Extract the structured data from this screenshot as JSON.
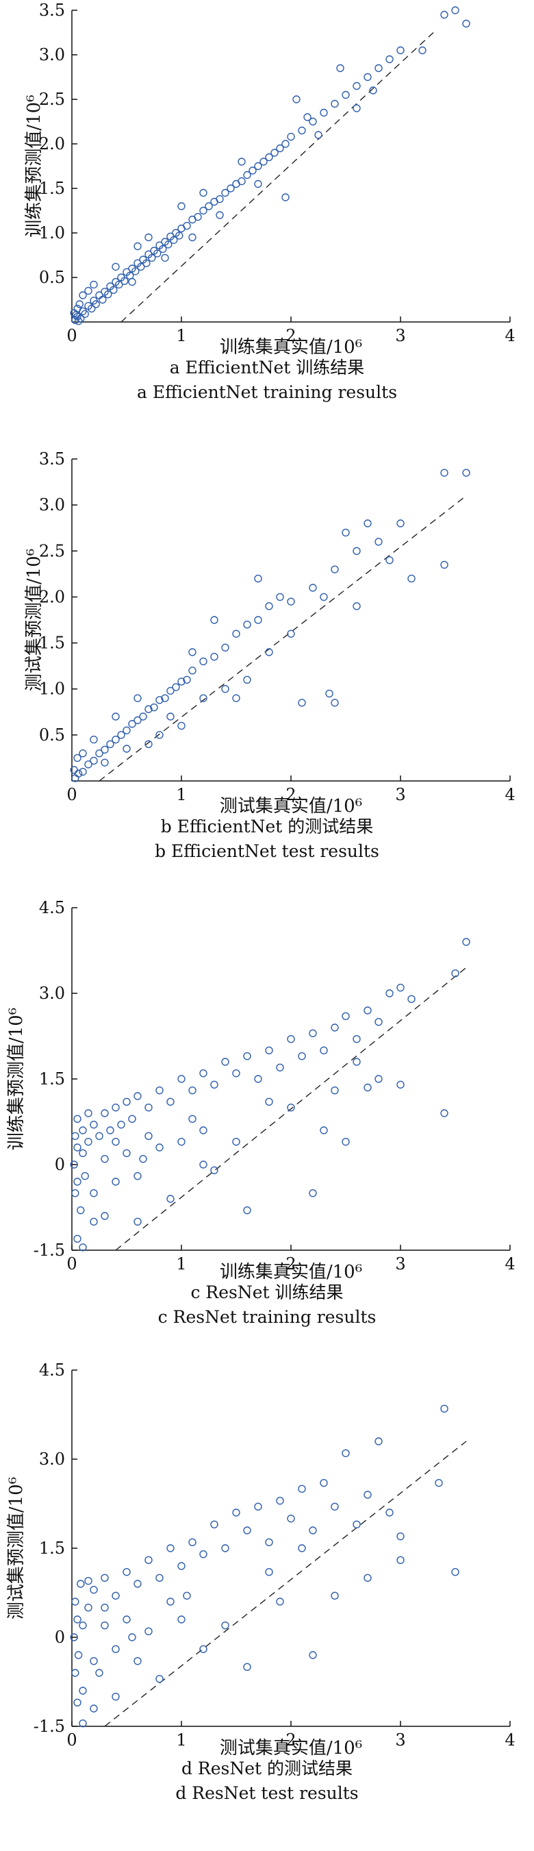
{
  "colors": {
    "marker": "#2f5fae",
    "axis": "#111111",
    "diagonal": "#222222"
  },
  "chart_data": [
    {
      "id": "a",
      "type": "scatter",
      "xlabel": "训练集真实值/10⁶",
      "ylabel": "训练集预测值/10⁶",
      "xlim": [
        0,
        4
      ],
      "ylim": [
        0,
        3.5
      ],
      "xticks": [
        "0",
        "1",
        "2",
        "3",
        "4"
      ],
      "yticks": [
        "0.5",
        "1.0",
        "1.5",
        "2.0",
        "2.5",
        "3.0",
        "3.5"
      ],
      "ytick_values": [
        0.5,
        1.0,
        1.5,
        2.0,
        2.5,
        3.0,
        3.5
      ],
      "diagonal": [
        [
          0.45,
          0
        ],
        [
          3.3,
          3.25
        ]
      ],
      "caption_zh": "a EfficientNet 训练结果",
      "caption_en": "a EfficientNet training results",
      "points": [
        [
          0.03,
          0.02
        ],
        [
          0.05,
          0.06
        ],
        [
          0.08,
          0.04
        ],
        [
          0.1,
          0.12
        ],
        [
          0.12,
          0.09
        ],
        [
          0.15,
          0.18
        ],
        [
          0.18,
          0.15
        ],
        [
          0.2,
          0.24
        ],
        [
          0.22,
          0.2
        ],
        [
          0.25,
          0.3
        ],
        [
          0.28,
          0.25
        ],
        [
          0.3,
          0.34
        ],
        [
          0.33,
          0.31
        ],
        [
          0.35,
          0.4
        ],
        [
          0.38,
          0.36
        ],
        [
          0.4,
          0.45
        ],
        [
          0.43,
          0.42
        ],
        [
          0.45,
          0.5
        ],
        [
          0.48,
          0.46
        ],
        [
          0.5,
          0.56
        ],
        [
          0.53,
          0.52
        ],
        [
          0.55,
          0.6
        ],
        [
          0.58,
          0.57
        ],
        [
          0.6,
          0.66
        ],
        [
          0.63,
          0.62
        ],
        [
          0.65,
          0.7
        ],
        [
          0.68,
          0.66
        ],
        [
          0.7,
          0.76
        ],
        [
          0.73,
          0.72
        ],
        [
          0.75,
          0.8
        ],
        [
          0.78,
          0.77
        ],
        [
          0.8,
          0.86
        ],
        [
          0.83,
          0.82
        ],
        [
          0.85,
          0.9
        ],
        [
          0.88,
          0.87
        ],
        [
          0.9,
          0.96
        ],
        [
          0.93,
          0.92
        ],
        [
          0.95,
          1.0
        ],
        [
          0.98,
          0.97
        ],
        [
          1.0,
          1.05
        ],
        [
          1.05,
          1.08
        ],
        [
          1.1,
          1.15
        ],
        [
          1.15,
          1.18
        ],
        [
          1.2,
          1.25
        ],
        [
          1.25,
          1.3
        ],
        [
          1.3,
          1.35
        ],
        [
          1.35,
          1.38
        ],
        [
          1.4,
          1.45
        ],
        [
          1.45,
          1.5
        ],
        [
          1.5,
          1.55
        ],
        [
          1.55,
          1.58
        ],
        [
          1.6,
          1.65
        ],
        [
          1.65,
          1.7
        ],
        [
          1.7,
          1.75
        ],
        [
          1.75,
          1.8
        ],
        [
          1.8,
          1.85
        ],
        [
          1.85,
          1.9
        ],
        [
          1.9,
          1.95
        ],
        [
          1.95,
          2.0
        ],
        [
          2.0,
          2.08
        ],
        [
          2.1,
          2.15
        ],
        [
          2.2,
          2.25
        ],
        [
          2.3,
          2.35
        ],
        [
          2.4,
          2.45
        ],
        [
          2.5,
          2.55
        ],
        [
          2.6,
          2.65
        ],
        [
          2.7,
          2.75
        ],
        [
          2.8,
          2.85
        ],
        [
          2.9,
          2.95
        ],
        [
          3.0,
          3.05
        ],
        [
          3.4,
          3.45
        ],
        [
          3.5,
          3.5
        ],
        [
          3.6,
          3.35
        ],
        [
          2.05,
          2.5
        ],
        [
          2.45,
          2.85
        ],
        [
          1.55,
          1.8
        ],
        [
          0.7,
          0.95
        ],
        [
          0.2,
          0.42
        ],
        [
          0.4,
          0.62
        ],
        [
          1.2,
          1.45
        ],
        [
          1.95,
          1.4
        ],
        [
          2.15,
          2.3
        ],
        [
          2.6,
          2.4
        ],
        [
          0.1,
          0.3
        ],
        [
          0.6,
          0.85
        ],
        [
          1.0,
          1.3
        ],
        [
          0.15,
          0.35
        ],
        [
          0.55,
          0.45
        ],
        [
          0.85,
          0.72
        ],
        [
          1.1,
          0.95
        ],
        [
          1.35,
          1.2
        ],
        [
          1.7,
          1.55
        ],
        [
          2.25,
          2.1
        ],
        [
          2.75,
          2.6
        ],
        [
          3.2,
          3.05
        ],
        [
          0.02,
          0.1
        ],
        [
          0.05,
          0.15
        ],
        [
          0.07,
          0.2
        ],
        [
          0.04,
          0.08
        ],
        [
          0.06,
          0.01
        ]
      ]
    },
    {
      "id": "b",
      "type": "scatter",
      "xlabel": "测试集真实值/10⁶",
      "ylabel": "测试集预测值/10⁶",
      "xlim": [
        0,
        4
      ],
      "ylim": [
        0,
        3.5
      ],
      "xticks": [
        "0",
        "1",
        "2",
        "3",
        "4"
      ],
      "yticks": [
        "0.5",
        "1.0",
        "1.5",
        "2.0",
        "2.5",
        "3.0",
        "3.5"
      ],
      "ytick_values": [
        0.5,
        1.0,
        1.5,
        2.0,
        2.5,
        3.0,
        3.5
      ],
      "diagonal": [
        [
          0.25,
          0
        ],
        [
          3.6,
          3.1
        ]
      ],
      "caption_zh": "b EfficientNet 的测试结果",
      "caption_en": "b EfficientNet test results",
      "points": [
        [
          0.03,
          0.03
        ],
        [
          0.06,
          0.08
        ],
        [
          0.1,
          0.1
        ],
        [
          0.15,
          0.18
        ],
        [
          0.2,
          0.22
        ],
        [
          0.25,
          0.3
        ],
        [
          0.3,
          0.34
        ],
        [
          0.35,
          0.4
        ],
        [
          0.4,
          0.45
        ],
        [
          0.45,
          0.5
        ],
        [
          0.5,
          0.55
        ],
        [
          0.55,
          0.62
        ],
        [
          0.6,
          0.66
        ],
        [
          0.65,
          0.7
        ],
        [
          0.7,
          0.78
        ],
        [
          0.75,
          0.8
        ],
        [
          0.8,
          0.88
        ],
        [
          0.85,
          0.9
        ],
        [
          0.9,
          0.98
        ],
        [
          0.95,
          1.02
        ],
        [
          1.0,
          1.08
        ],
        [
          1.05,
          1.1
        ],
        [
          1.1,
          1.2
        ],
        [
          1.2,
          1.3
        ],
        [
          1.3,
          1.35
        ],
        [
          1.4,
          1.45
        ],
        [
          1.5,
          1.6
        ],
        [
          1.6,
          1.7
        ],
        [
          1.7,
          1.75
        ],
        [
          1.8,
          1.9
        ],
        [
          1.9,
          2.0
        ],
        [
          2.0,
          1.95
        ],
        [
          2.2,
          2.1
        ],
        [
          2.4,
          2.3
        ],
        [
          2.6,
          2.5
        ],
        [
          2.8,
          2.6
        ],
        [
          3.0,
          2.8
        ],
        [
          3.4,
          3.35
        ],
        [
          3.6,
          3.35
        ],
        [
          3.4,
          2.35
        ],
        [
          2.1,
          0.85
        ],
        [
          2.4,
          0.85
        ],
        [
          2.35,
          0.95
        ],
        [
          1.5,
          0.9
        ],
        [
          1.6,
          1.1
        ],
        [
          1.0,
          0.6
        ],
        [
          0.8,
          0.5
        ],
        [
          0.5,
          0.35
        ],
        [
          0.3,
          0.2
        ],
        [
          1.3,
          1.75
        ],
        [
          1.7,
          2.2
        ],
        [
          2.5,
          2.7
        ],
        [
          2.7,
          2.8
        ],
        [
          0.6,
          0.9
        ],
        [
          0.4,
          0.7
        ],
        [
          0.2,
          0.45
        ],
        [
          1.2,
          0.9
        ],
        [
          1.8,
          1.4
        ],
        [
          2.0,
          1.6
        ],
        [
          2.9,
          2.4
        ],
        [
          0.05,
          0.25
        ],
        [
          0.1,
          0.3
        ],
        [
          0.02,
          0.12
        ],
        [
          0.7,
          0.4
        ],
        [
          0.9,
          0.7
        ],
        [
          1.4,
          1.0
        ],
        [
          1.1,
          1.4
        ],
        [
          2.3,
          2.0
        ],
        [
          2.6,
          1.9
        ],
        [
          3.1,
          2.2
        ]
      ]
    },
    {
      "id": "c",
      "type": "scatter",
      "xlabel": "训练集真实值/10⁶",
      "ylabel": "训练集预测值/10⁶",
      "xlim": [
        0,
        4
      ],
      "ylim": [
        -1.5,
        4.5
      ],
      "xticks": [
        "0",
        "1",
        "2",
        "3",
        "4"
      ],
      "yticks": [
        "-1.5",
        "0",
        "1.5",
        "3.0",
        "4.5"
      ],
      "ytick_values": [
        -1.5,
        0,
        1.5,
        3.0,
        4.5
      ],
      "diagonal": [
        [
          0.4,
          -1.5
        ],
        [
          3.6,
          3.45
        ]
      ],
      "caption_zh": "c ResNet 训练结果",
      "caption_en": "c ResNet training results",
      "points": [
        [
          0.02,
          0.0
        ],
        [
          0.03,
          0.5
        ],
        [
          0.03,
          -0.5
        ],
        [
          0.05,
          0.3
        ],
        [
          0.05,
          -0.3
        ],
        [
          0.05,
          0.8
        ],
        [
          0.08,
          -0.8
        ],
        [
          0.1,
          0.2
        ],
        [
          0.1,
          0.6
        ],
        [
          0.12,
          -0.2
        ],
        [
          0.15,
          0.4
        ],
        [
          0.2,
          0.7
        ],
        [
          0.2,
          -0.5
        ],
        [
          0.25,
          0.5
        ],
        [
          0.3,
          0.9
        ],
        [
          0.3,
          0.1
        ],
        [
          0.35,
          0.6
        ],
        [
          0.4,
          1.0
        ],
        [
          0.4,
          -0.3
        ],
        [
          0.45,
          0.7
        ],
        [
          0.5,
          1.1
        ],
        [
          0.5,
          0.2
        ],
        [
          0.55,
          0.8
        ],
        [
          0.6,
          1.2
        ],
        [
          0.6,
          -0.2
        ],
        [
          0.7,
          1.0
        ],
        [
          0.8,
          1.3
        ],
        [
          0.8,
          0.3
        ],
        [
          0.9,
          1.1
        ],
        [
          1.0,
          1.5
        ],
        [
          1.0,
          0.4
        ],
        [
          1.1,
          1.3
        ],
        [
          1.2,
          1.6
        ],
        [
          1.2,
          0.6
        ],
        [
          1.3,
          1.4
        ],
        [
          1.4,
          1.8
        ],
        [
          1.5,
          1.6
        ],
        [
          1.6,
          1.9
        ],
        [
          1.7,
          1.5
        ],
        [
          1.8,
          2.0
        ],
        [
          1.9,
          1.7
        ],
        [
          2.0,
          2.2
        ],
        [
          2.1,
          1.9
        ],
        [
          2.2,
          2.3
        ],
        [
          2.3,
          2.0
        ],
        [
          2.4,
          2.4
        ],
        [
          2.5,
          2.6
        ],
        [
          2.6,
          2.2
        ],
        [
          2.7,
          2.7
        ],
        [
          2.8,
          2.5
        ],
        [
          2.9,
          3.0
        ],
        [
          3.0,
          3.1
        ],
        [
          3.1,
          2.9
        ],
        [
          3.5,
          3.35
        ],
        [
          3.6,
          3.9
        ],
        [
          3.4,
          0.9
        ],
        [
          3.0,
          1.4
        ],
        [
          2.7,
          1.35
        ],
        [
          2.3,
          0.6
        ],
        [
          2.2,
          -0.5
        ],
        [
          1.6,
          -0.8
        ],
        [
          1.3,
          -0.1
        ],
        [
          0.9,
          -0.6
        ],
        [
          0.6,
          -1.0
        ],
        [
          0.2,
          -1.0
        ],
        [
          0.05,
          -1.3
        ],
        [
          0.1,
          -1.45
        ],
        [
          0.3,
          -0.9
        ],
        [
          1.2,
          0.0
        ],
        [
          1.5,
          0.4
        ],
        [
          2.0,
          1.0
        ],
        [
          2.5,
          0.4
        ],
        [
          2.8,
          1.5
        ],
        [
          0.7,
          0.5
        ],
        [
          1.8,
          1.1
        ],
        [
          2.4,
          1.3
        ],
        [
          2.6,
          1.8
        ],
        [
          0.15,
          0.9
        ],
        [
          0.4,
          0.4
        ],
        [
          0.65,
          0.1
        ],
        [
          1.1,
          0.8
        ]
      ]
    },
    {
      "id": "d",
      "type": "scatter",
      "xlabel": "测试集真实值/10⁶",
      "ylabel": "测试集预测值/10⁶",
      "xlim": [
        0,
        4
      ],
      "ylim": [
        -1.5,
        4.5
      ],
      "xticks": [
        "0",
        "1",
        "2",
        "3",
        "4"
      ],
      "yticks": [
        "-1.5",
        "0",
        "1.5",
        "3.0",
        "4.5"
      ],
      "ytick_values": [
        -1.5,
        0,
        1.5,
        3.0,
        4.5
      ],
      "diagonal": [
        [
          0.3,
          -1.5
        ],
        [
          3.6,
          3.3
        ]
      ],
      "caption_zh": "d ResNet 的测试结果",
      "caption_en": "d ResNet test results",
      "points": [
        [
          0.02,
          0.0
        ],
        [
          0.03,
          0.6
        ],
        [
          0.03,
          -0.6
        ],
        [
          0.05,
          0.3
        ],
        [
          0.06,
          -0.3
        ],
        [
          0.08,
          0.9
        ],
        [
          0.1,
          -0.9
        ],
        [
          0.1,
          0.2
        ],
        [
          0.15,
          0.5
        ],
        [
          0.2,
          0.8
        ],
        [
          0.2,
          -0.4
        ],
        [
          0.3,
          1.0
        ],
        [
          0.3,
          0.2
        ],
        [
          0.4,
          0.7
        ],
        [
          0.4,
          -0.2
        ],
        [
          0.5,
          1.1
        ],
        [
          0.5,
          0.3
        ],
        [
          0.6,
          0.9
        ],
        [
          0.7,
          1.3
        ],
        [
          0.7,
          0.1
        ],
        [
          0.8,
          1.0
        ],
        [
          0.9,
          1.5
        ],
        [
          1.0,
          1.2
        ],
        [
          1.0,
          0.3
        ],
        [
          1.1,
          1.6
        ],
        [
          1.2,
          1.4
        ],
        [
          1.3,
          1.9
        ],
        [
          1.4,
          1.5
        ],
        [
          1.5,
          2.1
        ],
        [
          1.6,
          1.8
        ],
        [
          1.7,
          2.2
        ],
        [
          1.8,
          1.6
        ],
        [
          1.9,
          2.3
        ],
        [
          2.0,
          2.0
        ],
        [
          2.1,
          2.5
        ],
        [
          2.2,
          1.8
        ],
        [
          2.3,
          2.6
        ],
        [
          2.4,
          2.2
        ],
        [
          2.5,
          3.1
        ],
        [
          2.6,
          1.9
        ],
        [
          2.7,
          2.4
        ],
        [
          2.8,
          3.3
        ],
        [
          2.9,
          2.1
        ],
        [
          3.0,
          1.7
        ],
        [
          3.4,
          3.85
        ],
        [
          3.35,
          2.6
        ],
        [
          3.5,
          1.1
        ],
        [
          2.2,
          -0.3
        ],
        [
          1.6,
          -0.5
        ],
        [
          1.2,
          -0.2
        ],
        [
          0.8,
          -0.7
        ],
        [
          0.4,
          -1.0
        ],
        [
          0.2,
          -1.2
        ],
        [
          0.1,
          -1.45
        ],
        [
          0.05,
          -1.1
        ],
        [
          0.6,
          -0.4
        ],
        [
          1.4,
          0.2
        ],
        [
          1.9,
          0.6
        ],
        [
          2.4,
          0.7
        ],
        [
          2.7,
          1.0
        ],
        [
          3.0,
          1.3
        ],
        [
          0.3,
          0.5
        ],
        [
          0.9,
          0.6
        ],
        [
          1.8,
          1.1
        ],
        [
          2.1,
          1.5
        ],
        [
          0.15,
          0.95
        ],
        [
          0.25,
          -0.6
        ],
        [
          1.05,
          0.7
        ],
        [
          0.55,
          0.0
        ]
      ]
    }
  ]
}
